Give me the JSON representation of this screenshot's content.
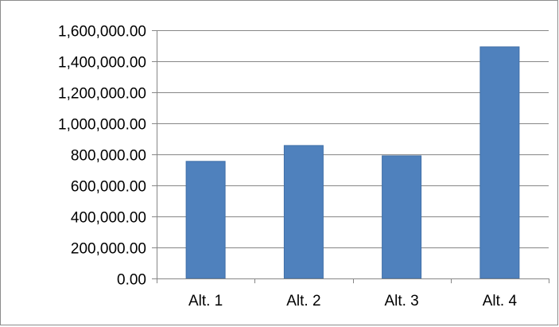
{
  "chart_data": {
    "type": "bar",
    "categories": [
      "Alt. 1",
      "Alt. 2",
      "Alt. 3",
      "Alt. 4"
    ],
    "values": [
      755000,
      857000,
      790000,
      1493000
    ],
    "ytick_labels": [
      "0.00",
      "200,000.00",
      "400,000.00",
      "600,000.00",
      "800,000.00",
      "1,000,000.00",
      "1,200,000.00",
      "1,400,000.00",
      "1,600,000.00"
    ],
    "ylim": [
      0,
      1600000
    ],
    "ytick_step": 200000,
    "grid": true,
    "legend": "none",
    "title": "",
    "xlabel": "",
    "ylabel": "",
    "bar_color": "#4f81bd",
    "bar_edge_color": "#3f6fa8",
    "gridline_color": "#868686",
    "axis_color": "#868686"
  }
}
